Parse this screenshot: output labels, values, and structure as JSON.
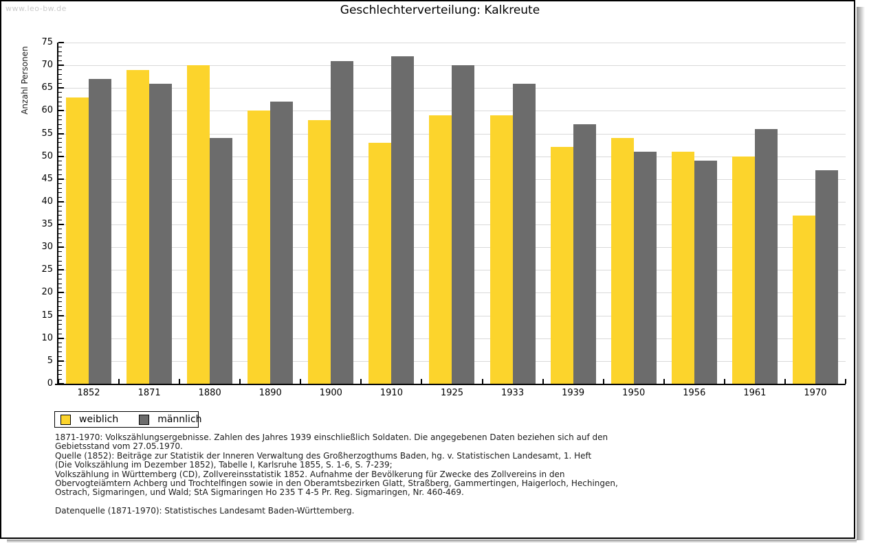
{
  "watermark": "www.leo-bw.de",
  "title": "Geschlechterverteilung: Kalkreute",
  "chart_data": {
    "type": "bar",
    "title": "Geschlechterverteilung: Kalkreute",
    "ylabel": "Anzahl Personen",
    "xlabel": "",
    "ylim": [
      0,
      75
    ],
    "ytick_step": 5,
    "grid": true,
    "legend_position": "below-left",
    "categories": [
      "1852",
      "1871",
      "1880",
      "1890",
      "1900",
      "1910",
      "1925",
      "1933",
      "1939",
      "1950",
      "1956",
      "1961",
      "1970"
    ],
    "series": [
      {
        "name": "weiblich",
        "color": "#FCD42C",
        "values": [
          63,
          69,
          70,
          60,
          58,
          53,
          59,
          59,
          52,
          54,
          51,
          50,
          37
        ]
      },
      {
        "name": "männlich",
        "color": "#6C6C6C",
        "values": [
          67,
          66,
          54,
          62,
          71,
          72,
          70,
          66,
          57,
          51,
          49,
          56,
          47
        ]
      }
    ]
  },
  "legend": {
    "items": [
      {
        "label": "weiblich",
        "color": "#FCD42C"
      },
      {
        "label": "männlich",
        "color": "#6C6C6C"
      }
    ]
  },
  "footnotes": {
    "lines": [
      "1871-1970: Volkszählungsergebnisse. Zahlen des Jahres 1939 einschließlich Soldaten. Die angegebenen Daten beziehen sich auf den",
      "Gebietsstand vom 27.05.1970.",
      "Quelle (1852): Beiträge zur Statistik der Inneren Verwaltung des Großherzogthums Baden, hg. v. Statistischen Landesamt, 1. Heft",
      "(Die Volkszählung im Dezember 1852), Tabelle I, Karlsruhe 1855, S. 1-6, S. 7-239;",
      "Volkszählung in Württemberg (CD), Zollvereinsstatistik 1852. Aufnahme der Bevölkerung für Zwecke des Zollvereins in den",
      "Obervogteiämtern Achberg und Trochtelfingen sowie in den Oberamtsbezirken Glatt, Straßberg, Gammertingen, Haigerloch, Hechingen,",
      "Ostrach, Sigmaringen, und Wald; StA Sigmaringen Ho 235 T 4-5 Pr. Reg. Sigmaringen, Nr. 460-469."
    ],
    "datasource": "Datenquelle (1871-1970): Statistisches Landesamt Baden-Württemberg."
  },
  "colors": {
    "grid": "#D9D9D9",
    "axis": "#000000",
    "frame_shadow": "#8F8F8F",
    "watermark": "#C9C9C9"
  }
}
